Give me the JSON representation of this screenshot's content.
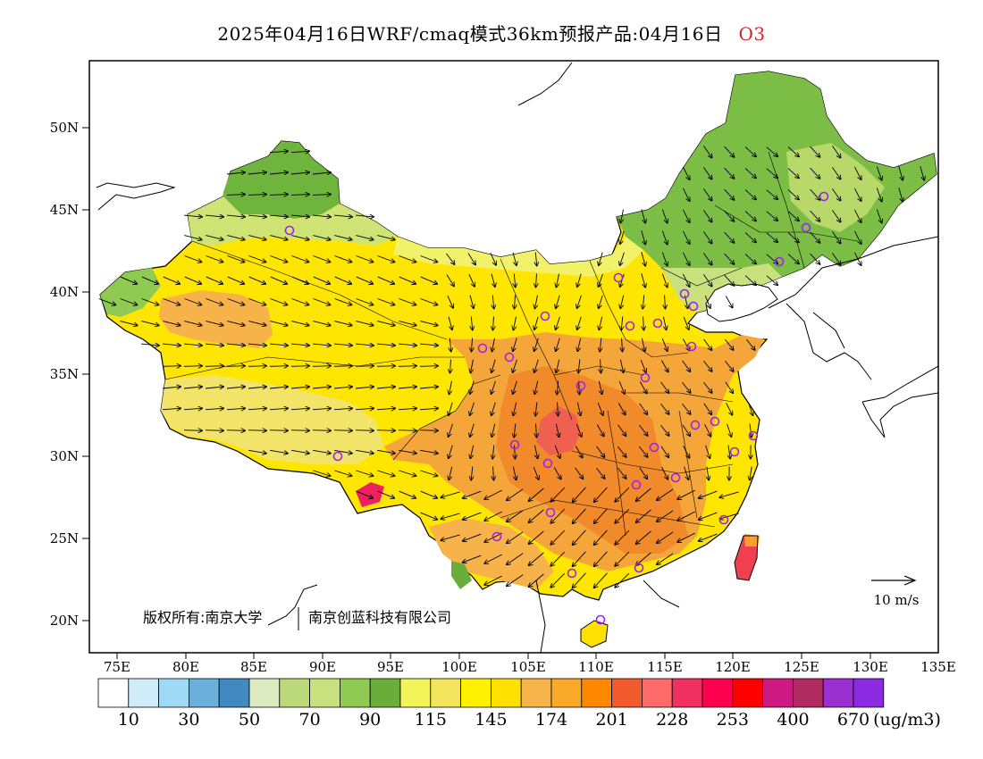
{
  "title": {
    "main": "2025年04月16日WRF/cmaq模式36km预报产品:04月16日",
    "species": "O3"
  },
  "axes": {
    "lat_labels": [
      "50N",
      "45N",
      "40N",
      "35N",
      "30N",
      "25N",
      "20N"
    ],
    "lon_labels": [
      "75E",
      "80E",
      "85E",
      "90E",
      "95E",
      "100E",
      "105E",
      "110E",
      "115E",
      "120E",
      "125E",
      "130E",
      "135E"
    ]
  },
  "wind_legend": {
    "label": "10 m/s"
  },
  "copyright": {
    "left": "版权所有:南京大学",
    "right": "南京创蓝科技有限公司"
  },
  "colorbar": {
    "colors": [
      "#ffffff",
      "#d2edfa",
      "#9fd9f4",
      "#6bafdc",
      "#4289c2",
      "#dcecc0",
      "#bcd97a",
      "#c8e07e",
      "#8fca52",
      "#6aad3a",
      "#f2f45a",
      "#f3e55e",
      "#fff200",
      "#ffe100",
      "#f7b44a",
      "#f9a82a",
      "#ff8800",
      "#f15a2e",
      "#ff6a6a",
      "#f03060",
      "#ff0050",
      "#ff0000",
      "#cc1a80",
      "#b02b60",
      "#9b30d0",
      "#8a2be2"
    ],
    "tick_labels": [
      "10",
      "30",
      "50",
      "70",
      "90",
      "115",
      "145",
      "174",
      "201",
      "228",
      "253",
      "400",
      "670"
    ],
    "unit": "(ug/m3)"
  },
  "station_marker_color": "#a020f0"
}
